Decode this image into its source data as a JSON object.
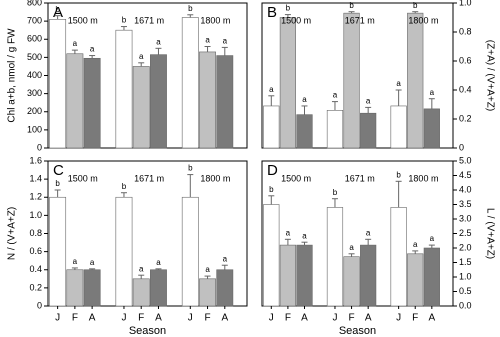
{
  "chart_data": [
    {
      "type": "bar",
      "panel": "A",
      "ylabel": "Chl a+b, nmol / g FW",
      "y_axis_side": "left",
      "categories": [
        "1500 m",
        "1671 m",
        "1800 m"
      ],
      "ylim": [
        0,
        800
      ],
      "yticks": [
        0,
        100,
        200,
        300,
        400,
        500,
        600,
        700,
        800
      ],
      "series": [
        {
          "color": "#ffffff",
          "values": [
            710,
            650,
            720
          ],
          "errors": [
            20,
            20,
            15
          ],
          "letters": [
            "b",
            "b",
            "b"
          ]
        },
        {
          "color": "#c0c0c0",
          "values": [
            520,
            450,
            530
          ],
          "errors": [
            20,
            20,
            30
          ],
          "letters": [
            "a",
            "a",
            "a"
          ]
        },
        {
          "color": "#7a7a7a",
          "values": [
            495,
            515,
            510
          ],
          "errors": [
            15,
            35,
            45
          ],
          "letters": [
            "a",
            "a",
            "a"
          ]
        }
      ]
    },
    {
      "type": "bar",
      "panel": "B",
      "ylabel": "(Z+A) / (V+A+Z)",
      "y_axis_side": "right",
      "categories": [
        "1500 m",
        "1671 m",
        "1800 m"
      ],
      "ylim": [
        0,
        1
      ],
      "yticks": [
        0,
        0.2,
        0.4,
        0.6,
        0.8,
        {
          "value": 1,
          "label": "1.0"
        }
      ],
      "series": [
        {
          "color": "#ffffff",
          "values": [
            0.29,
            0.26,
            0.29
          ],
          "errors": [
            0.07,
            0.06,
            0.11
          ],
          "letters": [
            "a",
            "a",
            "a"
          ]
        },
        {
          "color": "#c0c0c0",
          "values": [
            0.9,
            0.93,
            0.93
          ],
          "errors": [
            0.02,
            0.01,
            0.01
          ],
          "letters": [
            "b",
            "b",
            "b"
          ]
        },
        {
          "color": "#7a7a7a",
          "values": [
            0.23,
            0.24,
            0.27
          ],
          "errors": [
            0.06,
            0.04,
            0.07
          ],
          "letters": [
            "a",
            "a",
            "a"
          ]
        }
      ]
    },
    {
      "type": "bar",
      "panel": "C",
      "ylabel": "N / (V+A+Z)",
      "y_axis_side": "left",
      "xlabel": "Season",
      "categories": [
        "1500 m",
        "1671 m",
        "1800 m"
      ],
      "x_labels": [
        "J",
        "F",
        "A",
        "J",
        "F",
        "A",
        "J",
        "F",
        "A"
      ],
      "ylim": [
        0,
        1.6
      ],
      "yticks": [
        0,
        0.2,
        0.4,
        0.6,
        0.8,
        {
          "value": 1,
          "label": "1.0"
        },
        1.2,
        1.4,
        1.6
      ],
      "series": [
        {
          "color": "#ffffff",
          "values": [
            1.2,
            1.2,
            1.2
          ],
          "errors": [
            0.08,
            0.05,
            0.25
          ],
          "letters": [
            "b",
            "b",
            "b"
          ]
        },
        {
          "color": "#c0c0c0",
          "values": [
            0.4,
            0.3,
            0.3
          ],
          "errors": [
            0.02,
            0.04,
            0.03
          ],
          "letters": [
            "a",
            "a",
            "a"
          ]
        },
        {
          "color": "#7a7a7a",
          "values": [
            0.4,
            0.4,
            0.4
          ],
          "errors": [
            0.01,
            0.01,
            0.05
          ],
          "letters": [
            "a",
            "a",
            "a"
          ]
        }
      ]
    },
    {
      "type": "bar",
      "panel": "D",
      "ylabel": "L / (V+A+Z)",
      "y_axis_side": "right",
      "xlabel": "Season",
      "categories": [
        "1500 m",
        "1671 m",
        "1800 m"
      ],
      "x_labels": [
        "J",
        "F",
        "A",
        "J",
        "F",
        "A",
        "J",
        "F",
        "A"
      ],
      "ylim": [
        0,
        5
      ],
      "yticks": [
        {
          "value": 0,
          "label": "0.0"
        },
        0.5,
        {
          "value": 1,
          "label": "1.0"
        },
        1.5,
        {
          "value": 2,
          "label": "2.0"
        },
        2.5,
        {
          "value": 3,
          "label": "3.0"
        },
        3.5,
        {
          "value": 4,
          "label": "4.0"
        },
        4.5,
        {
          "value": 5,
          "label": "5.0"
        }
      ],
      "series": [
        {
          "color": "#ffffff",
          "values": [
            3.5,
            3.4,
            3.4
          ],
          "errors": [
            0.3,
            0.3,
            0.9
          ],
          "letters": [
            "b",
            "b",
            "b"
          ]
        },
        {
          "color": "#c0c0c0",
          "values": [
            2.1,
            1.7,
            1.8
          ],
          "errors": [
            0.2,
            0.1,
            0.1
          ],
          "letters": [
            "a",
            "a",
            "a"
          ]
        },
        {
          "color": "#7a7a7a",
          "values": [
            2.1,
            2.1,
            2.0
          ],
          "errors": [
            0.1,
            0.2,
            0.1
          ],
          "letters": [
            "a",
            "a",
            "a"
          ]
        }
      ]
    }
  ]
}
